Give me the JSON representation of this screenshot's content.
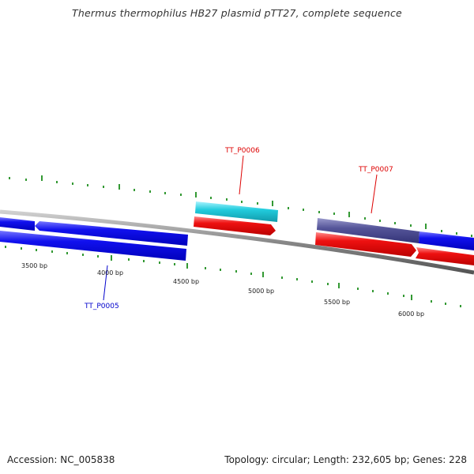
{
  "title": "Thermus thermophilus HB27 plasmid pTT27, complete sequence",
  "footer": {
    "accession": "Accession: NC_005838",
    "summary": "Topology: circular; Length: 232,605 bp; Genes: 228"
  },
  "colors": {
    "background": "#ffffff",
    "backbone": "#808080",
    "tick": "#339933",
    "forward_gene": "#0000ee",
    "reverse_gene": "#ee0000",
    "cyan_gene": "#22ccdd",
    "purple_gene": "#555599",
    "label_blue": "#0000cc",
    "label_red": "#dd0000"
  },
  "scale_labels": [
    {
      "bp": 3500,
      "text": "3500 bp"
    },
    {
      "bp": 4000,
      "text": "4000 bp"
    },
    {
      "bp": 4500,
      "text": "4500 bp"
    },
    {
      "bp": 5000,
      "text": "5000 bp"
    },
    {
      "bp": 5500,
      "text": "5500 bp"
    },
    {
      "bp": 6000,
      "text": "6000 bp"
    }
  ],
  "gene_labels": [
    {
      "id": "TT_P0005",
      "text": "TT_P0005",
      "color": "#0000cc"
    },
    {
      "id": "TT_P0006",
      "text": "TT_P0006",
      "color": "#dd0000"
    },
    {
      "id": "TT_P0007",
      "text": "TT_P0007",
      "color": "#dd0000"
    }
  ]
}
